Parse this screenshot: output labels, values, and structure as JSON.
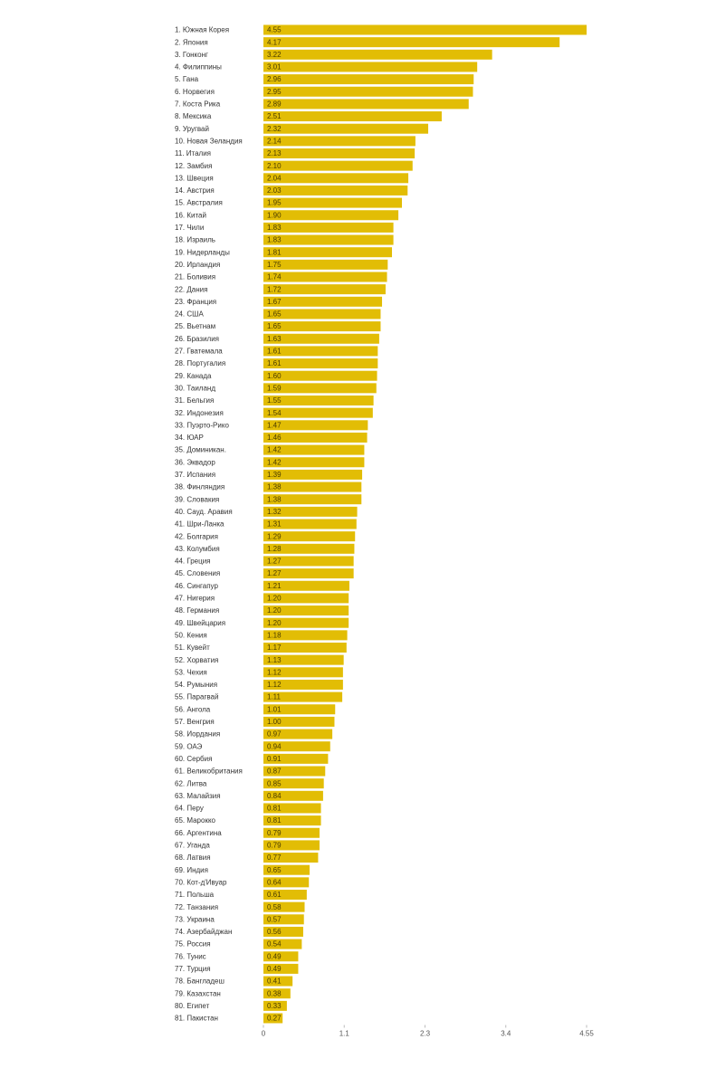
{
  "chart_data": {
    "type": "bar",
    "orientation": "horizontal",
    "color": "#e2bd05",
    "categories": [
      "1. Южная Корея",
      "2. Япония",
      "3. Гонконг",
      "4. Филиппины",
      "5. Гана",
      "6. Норвегия",
      "7. Коста Рика",
      "8. Мексика",
      "9. Уругвай",
      "10. Новая Зеландия",
      "11. Италия",
      "12. Замбия",
      "13. Швеция",
      "14. Австрия",
      "15. Австралия",
      "16. Китай",
      "17. Чили",
      "18. Израиль",
      "19. Нидерланды",
      "20. Ирландия",
      "21. Боливия",
      "22. Дания",
      "23. Франция",
      "24. США",
      "25. Вьетнам",
      "26. Бразилия",
      "27. Гватемала",
      "28. Португалия",
      "29. Канада",
      "30. Таиланд",
      "31. Бельгия",
      "32. Индонезия",
      "33. Пуэрто-Рико",
      "34. ЮАР",
      "35. Доминикан.",
      "36. Эквадор",
      "37. Испания",
      "38. Финляндия",
      "39. Словакия",
      "40. Сауд. Аравия",
      "41. Шри-Ланка",
      "42. Болгария",
      "43. Колумбия",
      "44. Греция",
      "45. Словения",
      "46. Сингапур",
      "47. Нигерия",
      "48. Германия",
      "49. Швейцария",
      "50. Кения",
      "51. Кувейт",
      "52. Хорватия",
      "53. Чехия",
      "54. Румыния",
      "55. Парагвай",
      "56. Ангола",
      "57. Венгрия",
      "58. Иордания",
      "59. ОАЭ",
      "60. Сербия",
      "61. Великобритания",
      "62. Литва",
      "63. Малайзия",
      "64. Перу",
      "65. Марокко",
      "66. Аргентина",
      "67. Уганда",
      "68. Латвия",
      "69. Индия",
      "70. Кот-д'Ивуар",
      "71. Польша",
      "72. Танзания",
      "73. Украина",
      "74. Азербайджан",
      "75. Россия",
      "76. Тунис",
      "77. Турция",
      "78. Бангладеш",
      "79. Казахстан",
      "80. Египет",
      "81. Пакистан"
    ],
    "values": [
      4.55,
      4.17,
      3.22,
      3.01,
      2.96,
      2.95,
      2.89,
      2.51,
      2.32,
      2.14,
      2.13,
      2.1,
      2.04,
      2.03,
      1.95,
      1.9,
      1.83,
      1.83,
      1.81,
      1.75,
      1.74,
      1.72,
      1.67,
      1.65,
      1.65,
      1.63,
      1.61,
      1.61,
      1.6,
      1.59,
      1.55,
      1.54,
      1.47,
      1.46,
      1.42,
      1.42,
      1.39,
      1.38,
      1.38,
      1.32,
      1.31,
      1.29,
      1.28,
      1.27,
      1.27,
      1.21,
      1.2,
      1.2,
      1.2,
      1.18,
      1.17,
      1.13,
      1.12,
      1.12,
      1.11,
      1.01,
      1,
      0.97,
      0.94,
      0.91,
      0.87,
      0.85,
      0.84,
      0.81,
      0.81,
      0.79,
      0.79,
      0.77,
      0.65,
      0.64,
      0.61,
      0.58,
      0.57,
      0.56,
      0.54,
      0.49,
      0.49,
      0.41,
      0.38,
      0.33,
      0.27
    ],
    "value_labels": [
      "4.55",
      "4.17",
      "3.22",
      "3.01",
      "2.96",
      "2.95",
      "2.89",
      "2.51",
      "2.32",
      "2.14",
      "2.13",
      "2.10",
      "2.04",
      "2.03",
      "1.95",
      "1.90",
      "1.83",
      "1.83",
      "1.81",
      "1.75",
      "1.74",
      "1.72",
      "1.67",
      "1.65",
      "1.65",
      "1.63",
      "1.61",
      "1.61",
      "1.60",
      "1.59",
      "1.55",
      "1.54",
      "1.47",
      "1.46",
      "1.42",
      "1.42",
      "1.39",
      "1.38",
      "1.38",
      "1.32",
      "1.31",
      "1.29",
      "1.28",
      "1.27",
      "1.27",
      "1.21",
      "1.20",
      "1.20",
      "1.20",
      "1.18",
      "1.17",
      "1.13",
      "1.12",
      "1.12",
      "1.11",
      "1.01",
      "1.00",
      "0.97",
      "0.94",
      "0.91",
      "0.87",
      "0.85",
      "0.84",
      "0.81",
      "0.81",
      "0.79",
      "0.79",
      "0.77",
      "0.65",
      "0.64",
      "0.61",
      "0.58",
      "0.57",
      "0.56",
      "0.54",
      "0.49",
      "0.49",
      "0.41",
      "0.38",
      "0.33",
      "0.27"
    ],
    "xlim": [
      0,
      4.55
    ],
    "xticks": [
      0,
      {
        "value": 1.1375,
        "label": "1.1"
      },
      {
        "value": 2.275,
        "label": "2.3"
      },
      {
        "value": 3.4125,
        "label": "3.4"
      },
      4.55
    ]
  }
}
